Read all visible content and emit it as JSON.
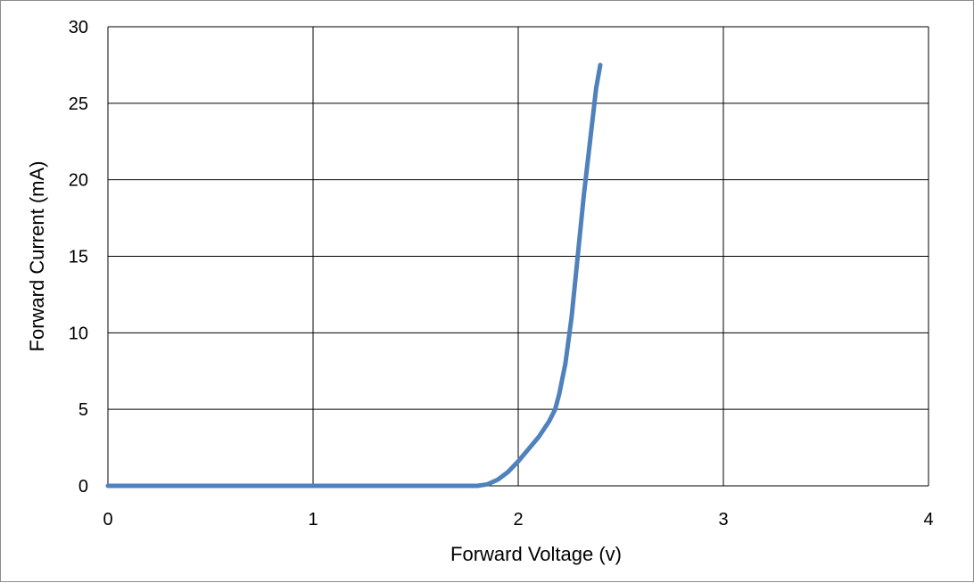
{
  "chart_data": {
    "type": "line",
    "title": "",
    "xlabel": "Forward Voltage (v)",
    "ylabel": "Forward Current (mA)",
    "xlim": [
      0,
      4
    ],
    "ylim": [
      0,
      30
    ],
    "x_ticks": [
      0,
      1,
      2,
      3,
      4
    ],
    "y_ticks": [
      0,
      5,
      10,
      15,
      20,
      25,
      30
    ],
    "grid": true,
    "legend": "none",
    "series": [
      {
        "color": "#4f81bd",
        "points": [
          [
            0.0,
            0.0
          ],
          [
            0.5,
            0.0
          ],
          [
            1.0,
            0.0
          ],
          [
            1.5,
            0.0
          ],
          [
            1.8,
            0.0
          ],
          [
            1.85,
            0.1
          ],
          [
            1.9,
            0.4
          ],
          [
            1.95,
            0.9
          ],
          [
            2.0,
            1.6
          ],
          [
            2.05,
            2.4
          ],
          [
            2.1,
            3.2
          ],
          [
            2.15,
            4.2
          ],
          [
            2.18,
            5.0
          ],
          [
            2.2,
            6.0
          ],
          [
            2.23,
            8.0
          ],
          [
            2.26,
            11.0
          ],
          [
            2.29,
            15.0
          ],
          [
            2.32,
            19.0
          ],
          [
            2.35,
            22.5
          ],
          [
            2.38,
            26.0
          ],
          [
            2.4,
            27.5
          ]
        ]
      }
    ]
  }
}
